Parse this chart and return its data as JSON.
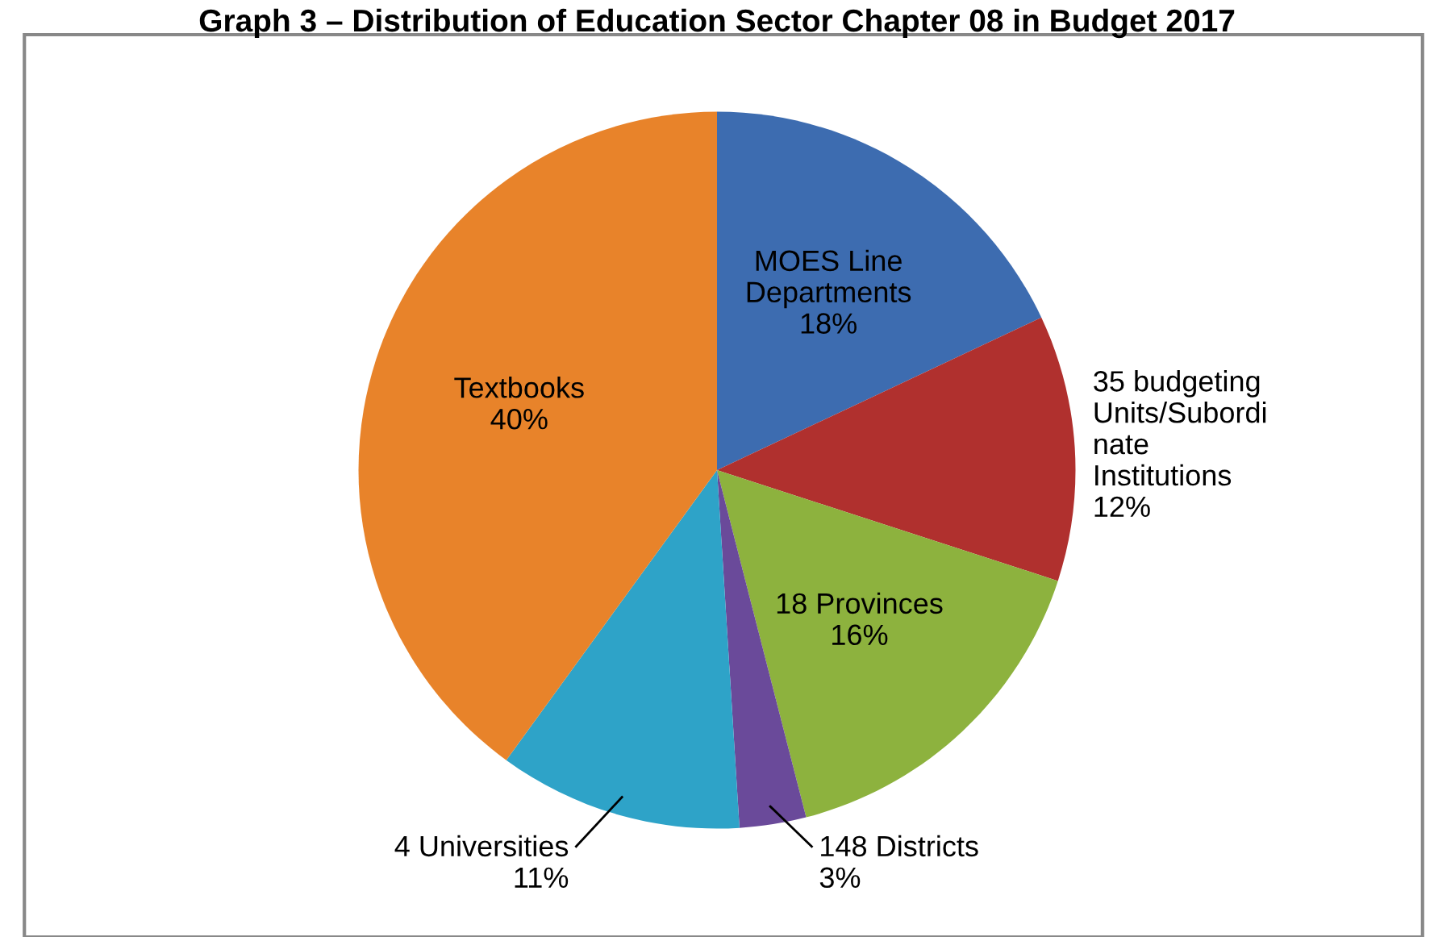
{
  "chart_data": {
    "type": "pie",
    "title": "Graph 3 – Distribution of Education Sector Chapter 08 in Budget 2017",
    "categories": [
      "MOES Line\nDepartments",
      "35 budgeting\nUnits/Subordi\nnate\nInstitutions",
      "18 Provinces",
      "148 Districts",
      "4 Universities",
      "Textbooks"
    ],
    "values": [
      18,
      12,
      16,
      3,
      11,
      40
    ],
    "value_labels": [
      "18%",
      "12%",
      "16%",
      "3%",
      "11%",
      "40%"
    ],
    "colors": [
      "#3d6cb0",
      "#b0302e",
      "#8db23e",
      "#6a4a9a",
      "#2ea3c8",
      "#e8832a"
    ],
    "legend": false
  }
}
